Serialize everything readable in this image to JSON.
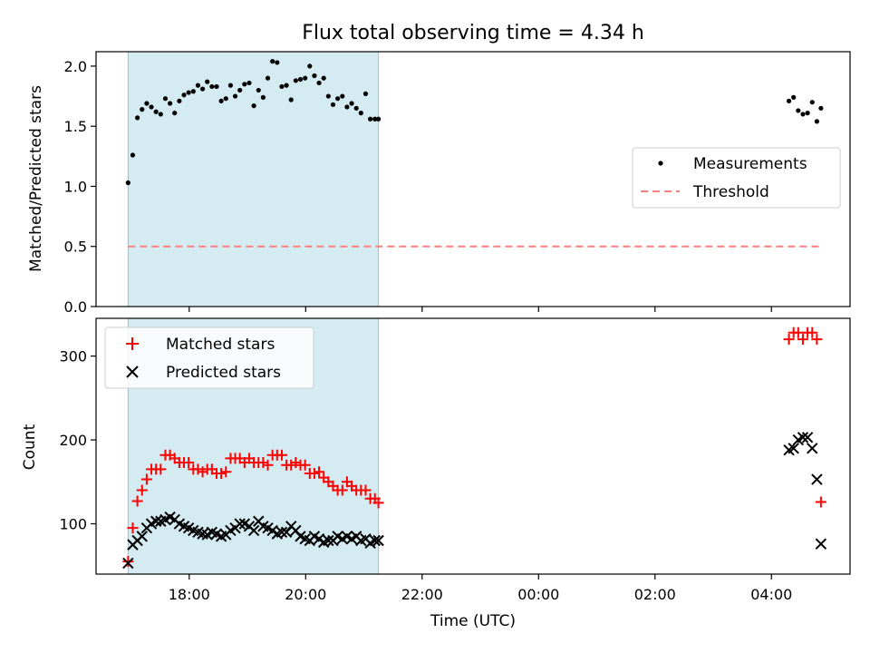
{
  "chart_data": [
    {
      "type": "scatter",
      "title": "Flux total observing time = 4.34 h",
      "xlabel": "",
      "ylabel": "Matched/Predicted stars",
      "x_unit": "hours since 00:00 UTC (values above 24 are after midnight)",
      "xlim": [
        16.4,
        29.35
      ],
      "ylim": [
        0.0,
        2.12
      ],
      "yticks": [
        0.0,
        0.5,
        1.0,
        1.5,
        2.0
      ],
      "ytick_labels": [
        "0.0",
        "0.5",
        "1.0",
        "1.5",
        "2.0"
      ],
      "shaded_span": [
        16.95,
        21.25
      ],
      "legend": {
        "location": "center-right",
        "entries": [
          "Measurements",
          "Threshold"
        ]
      },
      "series": [
        {
          "name": "Measurements",
          "marker": "dot",
          "color": "#000000",
          "x": [
            16.95,
            17.03,
            17.11,
            17.19,
            17.27,
            17.35,
            17.43,
            17.51,
            17.59,
            17.67,
            17.75,
            17.83,
            17.91,
            17.99,
            18.07,
            18.15,
            18.23,
            18.31,
            18.39,
            18.47,
            18.55,
            18.63,
            18.71,
            18.79,
            18.87,
            18.95,
            19.03,
            19.11,
            19.19,
            19.27,
            19.35,
            19.43,
            19.51,
            19.59,
            19.67,
            19.75,
            19.83,
            19.91,
            19.99,
            20.07,
            20.15,
            20.23,
            20.31,
            20.39,
            20.47,
            20.55,
            20.63,
            20.71,
            20.79,
            20.87,
            20.95,
            21.03,
            21.11,
            21.19,
            21.25,
            28.3,
            28.38,
            28.46,
            28.54,
            28.62,
            28.7,
            28.78,
            28.85
          ],
          "y": [
            1.03,
            1.26,
            1.57,
            1.64,
            1.69,
            1.66,
            1.62,
            1.6,
            1.73,
            1.69,
            1.61,
            1.71,
            1.76,
            1.78,
            1.79,
            1.84,
            1.81,
            1.87,
            1.83,
            1.83,
            1.71,
            1.73,
            1.84,
            1.75,
            1.8,
            1.85,
            1.86,
            1.67,
            1.8,
            1.74,
            1.9,
            2.04,
            2.03,
            1.83,
            1.84,
            1.72,
            1.88,
            1.89,
            1.9,
            2.0,
            1.92,
            1.86,
            1.9,
            1.75,
            1.68,
            1.73,
            1.75,
            1.66,
            1.69,
            1.65,
            1.61,
            1.77,
            1.56,
            1.56,
            1.56,
            1.71,
            1.74,
            1.63,
            1.6,
            1.61,
            1.7,
            1.54,
            1.65
          ]
        },
        {
          "name": "Threshold",
          "style": "dashed",
          "color": "#ff7f7f",
          "x": [
            16.95,
            28.85
          ],
          "y": [
            0.5,
            0.5
          ]
        }
      ]
    },
    {
      "type": "scatter",
      "title": "",
      "xlabel": "Time (UTC)",
      "ylabel": "Count",
      "x_unit": "hours since 00:00 UTC (values above 24 are after midnight)",
      "xlim": [
        16.4,
        29.35
      ],
      "ylim": [
        40,
        345
      ],
      "yticks": [
        100,
        200,
        300
      ],
      "ytick_labels": [
        "100",
        "200",
        "300"
      ],
      "xticks": [
        18,
        20,
        22,
        24,
        26,
        28
      ],
      "xtick_labels": [
        "18:00",
        "20:00",
        "22:00",
        "00:00",
        "02:00",
        "04:00"
      ],
      "shaded_span": [
        16.95,
        21.25
      ],
      "legend": {
        "location": "top-left",
        "entries": [
          "Matched stars",
          "Predicted stars"
        ]
      },
      "series": [
        {
          "name": "Matched stars",
          "marker": "plus",
          "color": "#ff0000",
          "x": [
            16.95,
            17.03,
            17.11,
            17.19,
            17.27,
            17.35,
            17.43,
            17.51,
            17.59,
            17.67,
            17.75,
            17.83,
            17.91,
            17.99,
            18.07,
            18.15,
            18.23,
            18.31,
            18.39,
            18.47,
            18.55,
            18.63,
            18.71,
            18.79,
            18.87,
            18.95,
            19.03,
            19.11,
            19.19,
            19.27,
            19.35,
            19.43,
            19.51,
            19.59,
            19.67,
            19.75,
            19.83,
            19.91,
            19.99,
            20.07,
            20.15,
            20.23,
            20.31,
            20.39,
            20.47,
            20.55,
            20.63,
            20.71,
            20.79,
            20.87,
            20.95,
            21.03,
            21.11,
            21.19,
            21.25,
            28.3,
            28.38,
            28.46,
            28.54,
            28.62,
            28.7,
            28.78,
            28.85
          ],
          "y": [
            55,
            95,
            127,
            140,
            153,
            165,
            165,
            165,
            182,
            182,
            178,
            173,
            173,
            173,
            165,
            165,
            162,
            165,
            165,
            160,
            160,
            162,
            178,
            178,
            178,
            173,
            178,
            173,
            173,
            173,
            170,
            182,
            182,
            182,
            170,
            170,
            173,
            170,
            170,
            160,
            160,
            162,
            155,
            150,
            145,
            140,
            140,
            150,
            145,
            140,
            140,
            140,
            130,
            130,
            125,
            320,
            328,
            328,
            320,
            328,
            328,
            320,
            126
          ]
        },
        {
          "name": "Predicted stars",
          "marker": "x",
          "color": "#000000",
          "x": [
            16.95,
            17.03,
            17.11,
            17.19,
            17.27,
            17.35,
            17.43,
            17.51,
            17.59,
            17.67,
            17.75,
            17.83,
            17.91,
            17.99,
            18.07,
            18.15,
            18.23,
            18.31,
            18.39,
            18.47,
            18.55,
            18.63,
            18.71,
            18.79,
            18.87,
            18.95,
            19.03,
            19.11,
            19.19,
            19.27,
            19.35,
            19.43,
            19.51,
            19.59,
            19.67,
            19.75,
            19.83,
            19.91,
            19.99,
            20.07,
            20.15,
            20.23,
            20.31,
            20.39,
            20.47,
            20.55,
            20.63,
            20.71,
            20.79,
            20.87,
            20.95,
            21.03,
            21.11,
            21.19,
            21.25,
            28.3,
            28.38,
            28.46,
            28.54,
            28.62,
            28.7,
            28.78,
            28.85
          ],
          "y": [
            53,
            75,
            80,
            85,
            95,
            100,
            103,
            103,
            105,
            108,
            105,
            100,
            97,
            95,
            92,
            90,
            88,
            87,
            90,
            88,
            85,
            87,
            92,
            95,
            100,
            100,
            97,
            92,
            103,
            97,
            95,
            92,
            88,
            90,
            90,
            97,
            92,
            85,
            82,
            80,
            85,
            82,
            78,
            80,
            80,
            85,
            82,
            85,
            82,
            85,
            80,
            82,
            77,
            80,
            80,
            188,
            190,
            200,
            203,
            203,
            190,
            153,
            76
          ]
        }
      ]
    }
  ]
}
